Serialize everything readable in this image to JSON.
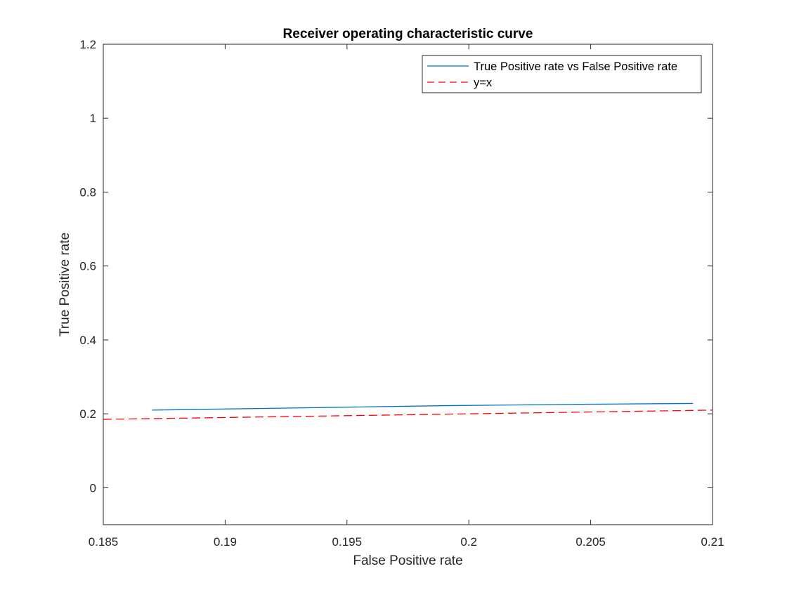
{
  "chart_data": {
    "type": "line",
    "title": "Receiver operating characteristic curve",
    "xlabel": "False Positive rate",
    "ylabel": "True Positive rate",
    "xlim": [
      0.185,
      0.21
    ],
    "ylim": [
      -0.1,
      1.2
    ],
    "xticks": [
      0.185,
      0.19,
      0.195,
      0.2,
      0.205,
      0.21
    ],
    "xtick_labels": [
      "0.185",
      "0.19",
      "0.195",
      "0.2",
      "0.205",
      "0.21"
    ],
    "yticks": [
      0,
      0.2,
      0.4,
      0.6,
      0.8,
      1,
      1.2
    ],
    "ytick_labels": [
      "0",
      "0.2",
      "0.4",
      "0.6",
      "0.8",
      "1",
      "1.2"
    ],
    "grid": false,
    "legend_position": "top-right",
    "series": [
      {
        "name": "True Positive rate vs False Positive rate",
        "color": "#0072BD",
        "style": "solid",
        "x": [
          0.187,
          0.19,
          0.193,
          0.196,
          0.199,
          0.202,
          0.205,
          0.2092
        ],
        "y": [
          0.21,
          0.213,
          0.216,
          0.219,
          0.222,
          0.224,
          0.226,
          0.228
        ]
      },
      {
        "name": "y=x",
        "color": "#FF0000",
        "style": "dashed",
        "x": [
          0.185,
          0.21
        ],
        "y": [
          0.185,
          0.21
        ]
      }
    ]
  }
}
